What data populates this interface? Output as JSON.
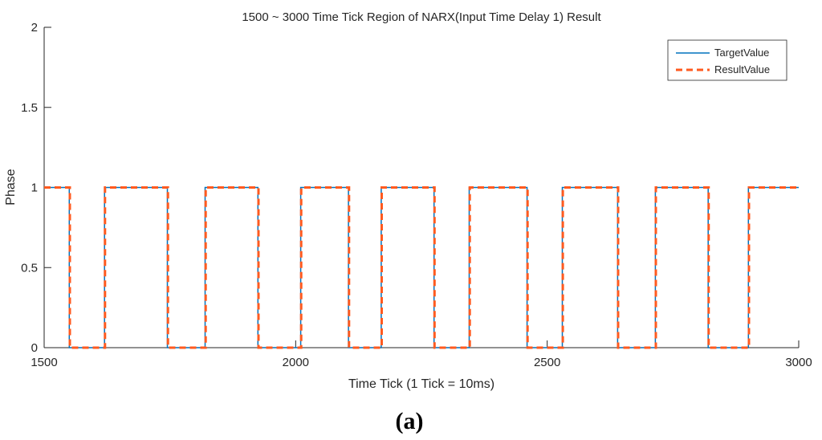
{
  "chart_data": {
    "type": "line",
    "title": "1500 ~ 3000 Time Tick Region of NARX(Input Time Delay 1) Result",
    "xlabel": "Time Tick (1 Tick = 10ms)",
    "ylabel": "Phase",
    "xlim": [
      1500,
      3000
    ],
    "ylim": [
      0,
      2
    ],
    "x_ticks": [
      "1500",
      "2000",
      "2500",
      "3000"
    ],
    "y_ticks": [
      "0",
      "0.5",
      "1",
      "1.5",
      "2"
    ],
    "grid": false,
    "legend_position": "top-right",
    "series": [
      {
        "name": "TargetValue",
        "color": "#0072BD",
        "style": "solid",
        "x": [
          1500,
          1550,
          1550,
          1620,
          1620,
          1745,
          1745,
          1820,
          1820,
          1925,
          1925,
          2010,
          2010,
          2105,
          2105,
          2170,
          2170,
          2275,
          2275,
          2345,
          2345,
          2460,
          2460,
          2530,
          2530,
          2640,
          2640,
          2715,
          2715,
          2820,
          2820,
          2900,
          2900,
          3000
        ],
        "y": [
          1,
          1,
          0,
          0,
          1,
          1,
          0,
          0,
          1,
          1,
          0,
          0,
          1,
          1,
          0,
          0,
          1,
          1,
          0,
          0,
          1,
          1,
          0,
          0,
          1,
          1,
          0,
          0,
          1,
          1,
          0,
          0,
          1,
          1
        ]
      },
      {
        "name": "ResultValue",
        "color": "#FF5A1F",
        "style": "dashed",
        "x": [
          1500,
          1551,
          1551,
          1621,
          1621,
          1746,
          1746,
          1821,
          1821,
          1926,
          1926,
          2011,
          2011,
          2106,
          2106,
          2171,
          2171,
          2276,
          2276,
          2346,
          2346,
          2461,
          2461,
          2531,
          2531,
          2641,
          2641,
          2716,
          2716,
          2821,
          2821,
          2901,
          2901,
          3000
        ],
        "y": [
          1,
          1,
          0,
          0,
          1,
          1,
          0,
          0,
          1,
          1,
          0,
          0,
          1,
          1,
          0,
          0,
          1,
          1,
          0,
          0,
          1,
          1,
          0,
          0,
          1,
          1,
          0,
          0,
          1,
          1,
          0,
          0,
          1,
          1
        ]
      }
    ]
  },
  "panel_label": {
    "open": "(",
    "letter": "a",
    "close": ")"
  }
}
